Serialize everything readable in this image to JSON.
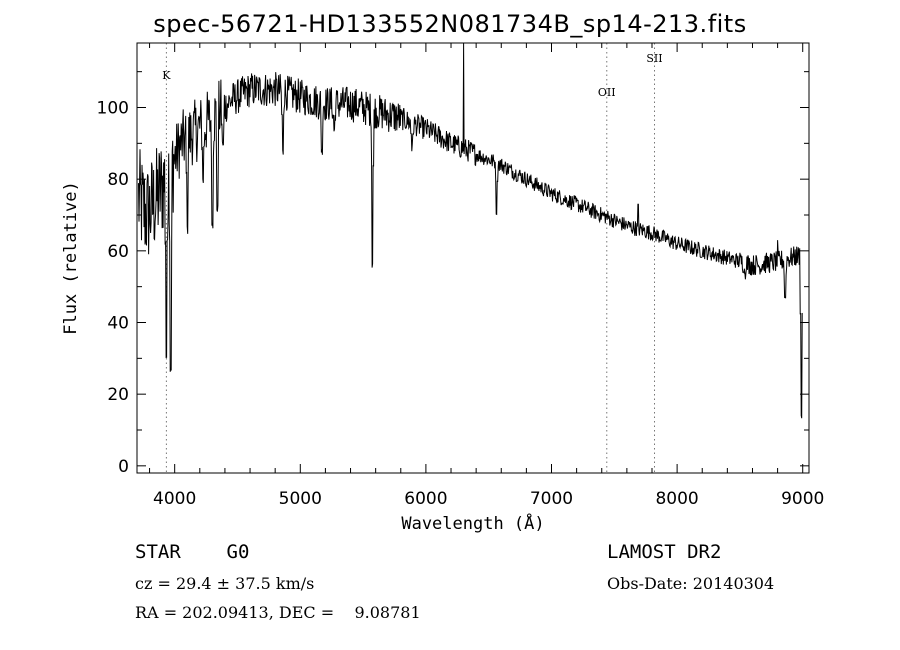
{
  "header": {
    "title": "spec-56721-HD133552N081734B_sp14-213.fits"
  },
  "info": {
    "object_class": "STAR    G0",
    "survey": "LAMOST DR2",
    "redshift": "cz = 29.4 ± 37.5 km/s",
    "obs_date": "Obs-Date: 20140304",
    "coords": "RA = 202.09413, DEC =    9.08781"
  },
  "chart_data": {
    "type": "line",
    "title": "spec-56721-HD133552N081734B_sp14-213.fits",
    "xlabel": "Wavelength (Å)",
    "ylabel": "Flux (relative)",
    "xlim": [
      3700,
      9050
    ],
    "ylim": [
      -2,
      118
    ],
    "xticks": [
      4000,
      5000,
      6000,
      7000,
      8000,
      9000
    ],
    "yticks": [
      0,
      20,
      40,
      60,
      80,
      100
    ],
    "grid": false,
    "line_color": "#000000",
    "marker_color": "#777777",
    "line_markers": [
      {
        "label": "K",
        "x": 3934
      },
      {
        "label": "OII",
        "x": 7440
      },
      {
        "label": "SII",
        "x": 7820
      }
    ],
    "series": [
      {
        "continuum": [
          [
            3700,
            75
          ],
          [
            3780,
            70
          ],
          [
            3850,
            74
          ],
          [
            3950,
            82
          ],
          [
            4050,
            90
          ],
          [
            4150,
            93
          ],
          [
            4300,
            97
          ],
          [
            4450,
            102
          ],
          [
            4600,
            105
          ],
          [
            4800,
            105
          ],
          [
            5000,
            103
          ],
          [
            5200,
            101
          ],
          [
            5400,
            101
          ],
          [
            5600,
            99
          ],
          [
            5800,
            97
          ],
          [
            6000,
            94
          ],
          [
            6200,
            90
          ],
          [
            6400,
            87
          ],
          [
            6600,
            84
          ],
          [
            6800,
            80
          ],
          [
            7000,
            76
          ],
          [
            7200,
            73
          ],
          [
            7400,
            70
          ],
          [
            7600,
            67
          ],
          [
            7800,
            65
          ],
          [
            8000,
            62
          ],
          [
            8200,
            60
          ],
          [
            8400,
            58
          ],
          [
            8600,
            56
          ],
          [
            8800,
            57
          ],
          [
            8900,
            58
          ],
          [
            9000,
            59
          ]
        ],
        "absorption_lines": [
          [
            3934,
            29
          ],
          [
            3968,
            25
          ],
          [
            4101,
            64
          ],
          [
            4227,
            78
          ],
          [
            4300,
            66
          ],
          [
            4340,
            70
          ],
          [
            4384,
            88
          ],
          [
            4861,
            86
          ],
          [
            5172,
            86
          ],
          [
            5270,
            92
          ],
          [
            5575,
            55
          ],
          [
            5890,
            87
          ],
          [
            6563,
            70
          ],
          [
            8542,
            52
          ],
          [
            8662,
            54
          ],
          [
            8860,
            45
          ],
          [
            8990,
            12
          ]
        ],
        "emission_spikes": [
          [
            6300,
            118
          ],
          [
            7690,
            73
          ],
          [
            8800,
            63
          ]
        ]
      }
    ]
  }
}
